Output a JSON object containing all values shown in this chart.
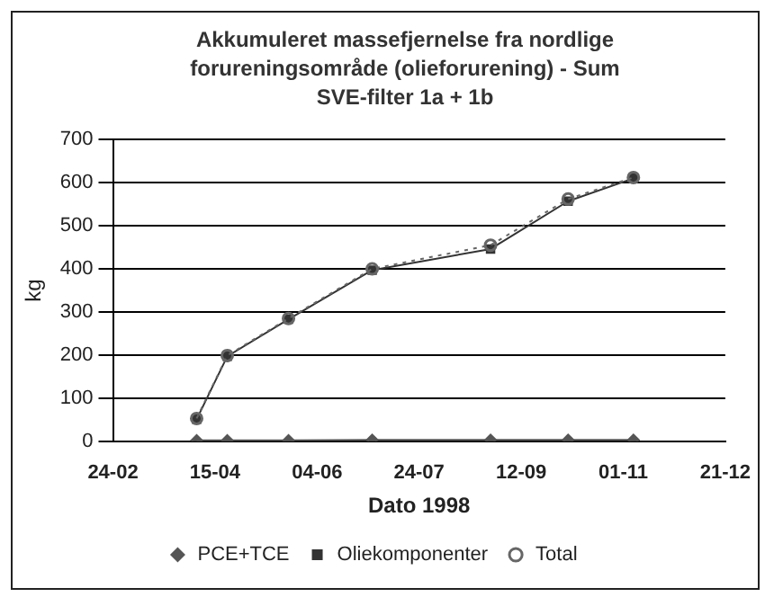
{
  "chart_data": {
    "type": "line",
    "title": "Akkumuleret massefjernelse fra nordlige forureningsområde (olieforurening) - Sum SVE-filter 1a + 1b",
    "xlabel": "Dato 1998",
    "ylabel": "kg",
    "x": [
      "1998-04-06",
      "1998-04-21",
      "1998-05-21",
      "1998-07-01",
      "1998-08-28",
      "1998-10-05",
      "1998-11-06"
    ],
    "series": [
      {
        "name": "PCE+TCE",
        "color": "#555555",
        "values": [
          2,
          2,
          2,
          3,
          3,
          3,
          3
        ],
        "marker": "diamond",
        "line_style": "solid"
      },
      {
        "name": "Oliekomponenter",
        "color": "#333333",
        "values": [
          51,
          197,
          283,
          397,
          446,
          557,
          610
        ],
        "marker": "square",
        "line_style": "solid"
      },
      {
        "name": "Total",
        "color": "#666666",
        "values": [
          53,
          199,
          285,
          400,
          455,
          562,
          612
        ],
        "marker": "circle",
        "line_style": "dotted"
      }
    ],
    "xlim": [
      "1998-02-24",
      "1998-12-21"
    ],
    "xticks": [
      {
        "value": "1998-02-24",
        "label": "24-02"
      },
      {
        "value": "1998-04-15",
        "label": "15-04"
      },
      {
        "value": "1998-06-04",
        "label": "04-06"
      },
      {
        "value": "1998-07-24",
        "label": "24-07"
      },
      {
        "value": "1998-09-12",
        "label": "12-09"
      },
      {
        "value": "1998-11-01",
        "label": "01-11"
      },
      {
        "value": "1998-12-21",
        "label": "21-12"
      }
    ],
    "ylim": [
      0,
      700
    ],
    "yticks": [
      0,
      100,
      200,
      300,
      400,
      500,
      600,
      700
    ],
    "grid": "y",
    "legend": "bottom"
  }
}
